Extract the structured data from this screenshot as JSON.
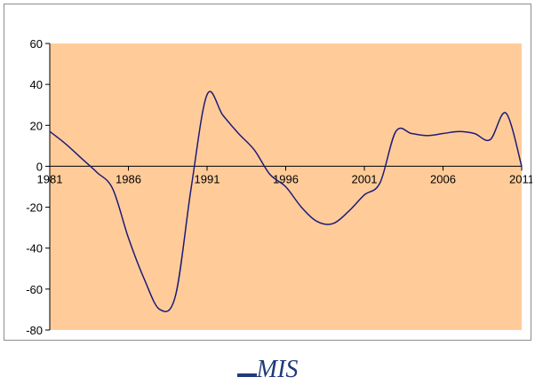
{
  "chart_data": {
    "type": "line",
    "title": "",
    "xlabel": "",
    "ylabel": "",
    "xlim": [
      1981,
      2011
    ],
    "ylim": [
      -80,
      60
    ],
    "x_ticks": [
      "1981",
      "1986",
      "1991",
      "1996",
      "2001",
      "2006",
      "2011"
    ],
    "y_ticks": [
      "60",
      "40",
      "20",
      "0",
      "-20",
      "-40",
      "-60",
      "-80"
    ],
    "grid": false,
    "legend_position": "bottom-center",
    "series": [
      {
        "name": "MIS",
        "color": "#1f1a7a",
        "x": [
          1981,
          1982,
          1983,
          1984,
          1985,
          1986,
          1987,
          1988,
          1989,
          1990,
          1991,
          1992,
          1993,
          1994,
          1995,
          1996,
          1997,
          1998,
          1999,
          2000,
          2001,
          2002,
          2003,
          2004,
          2005,
          2006,
          2007,
          2008,
          2009,
          2010,
          2011
        ],
        "values": [
          17,
          11,
          4,
          -3,
          -11,
          -35,
          -55,
          -70,
          -63,
          -10,
          35,
          25,
          16,
          8,
          -4,
          -10,
          -20,
          -27,
          -28,
          -22,
          -14,
          -8,
          17,
          16,
          15,
          16,
          17,
          16,
          13,
          26,
          0
        ]
      }
    ]
  },
  "colors": {
    "plot_background": "#ffcc99",
    "axis": "#000000",
    "line": "#1f1a7a",
    "legend_text": "#1f3a7a"
  }
}
